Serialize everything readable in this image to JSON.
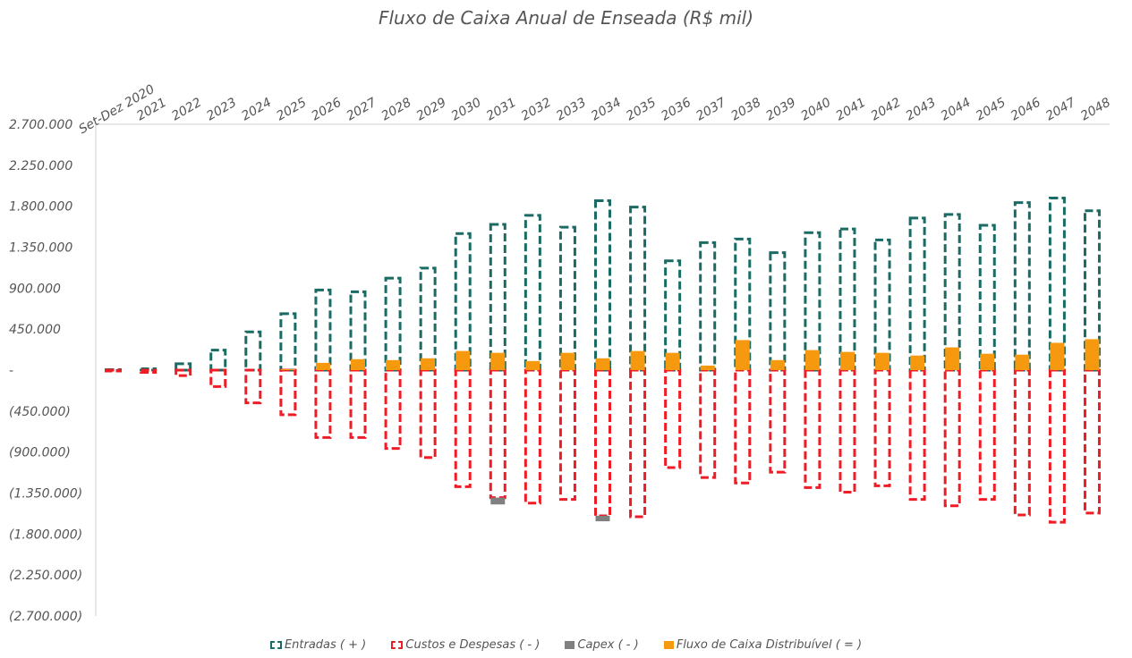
{
  "chart_data": {
    "type": "bar",
    "title": "Fluxo de Caixa Anual de Enseada (R$ mil)",
    "categories": [
      "Set-Dez 2020",
      "2021",
      "2022",
      "2023",
      "2024",
      "2025",
      "2026",
      "2027",
      "2028",
      "2029",
      "2030",
      "2031",
      "2032",
      "2033",
      "2034",
      "2035",
      "2036",
      "2037",
      "2038",
      "2039",
      "2040",
      "2041",
      "2042",
      "2043",
      "2044",
      "2045",
      "2046",
      "2047",
      "2048"
    ],
    "ylim": [
      -2700000,
      2700000
    ],
    "yticks": [
      2700000,
      2250000,
      1800000,
      1350000,
      900000,
      450000,
      0,
      -450000,
      -900000,
      -1350000,
      -1800000,
      -2250000,
      -2700000
    ],
    "ytick_labels": [
      "2.700.000",
      "2.250.000",
      "1.800.000",
      "1.350.000",
      "900.000",
      "450.000",
      "-",
      "(450.000)",
      "(900.000)",
      "(1.350.000)",
      "(1.800.000)",
      "(2.250.000)",
      "(2.700.000)"
    ],
    "grid": false,
    "legend": "bottom",
    "series": [
      {
        "name": "Entradas ( + )",
        "color": "#1a6b63",
        "style": "dashed-outline",
        "values": [
          5000,
          15000,
          70000,
          220000,
          420000,
          620000,
          880000,
          860000,
          1010000,
          1120000,
          1500000,
          1600000,
          1700000,
          1570000,
          1860000,
          1790000,
          1200000,
          1400000,
          1440000,
          1290000,
          1510000,
          1550000,
          1430000,
          1670000,
          1710000,
          1590000,
          1840000,
          1890000,
          1750000
        ]
      },
      {
        "name": "Custos e Despesas ( - )",
        "color": "#ee1c25",
        "style": "dashed-outline",
        "values": [
          -10000,
          -25000,
          -60000,
          -180000,
          -360000,
          -490000,
          -740000,
          -740000,
          -860000,
          -960000,
          -1280000,
          -1400000,
          -1460000,
          -1420000,
          -1600000,
          -1610000,
          -1070000,
          -1180000,
          -1240000,
          -1120000,
          -1290000,
          -1340000,
          -1270000,
          -1420000,
          -1490000,
          -1420000,
          -1590000,
          -1670000,
          -1570000
        ]
      },
      {
        "name": "Capex ( - )",
        "color": "#808080",
        "style": "solid",
        "values": [
          0,
          0,
          0,
          0,
          0,
          0,
          0,
          0,
          0,
          0,
          0,
          -75000,
          0,
          0,
          -60000,
          0,
          0,
          0,
          0,
          0,
          0,
          0,
          0,
          0,
          0,
          0,
          0,
          0,
          0
        ]
      },
      {
        "name": "Fluxo de Caixa Distribuível ( = )",
        "color": "#f7990f",
        "style": "solid",
        "values": [
          0,
          0,
          0,
          0,
          0,
          10000,
          80000,
          120000,
          110000,
          130000,
          210000,
          190000,
          100000,
          190000,
          130000,
          210000,
          190000,
          50000,
          330000,
          110000,
          220000,
          200000,
          190000,
          160000,
          250000,
          180000,
          170000,
          300000,
          340000
        ]
      }
    ]
  }
}
